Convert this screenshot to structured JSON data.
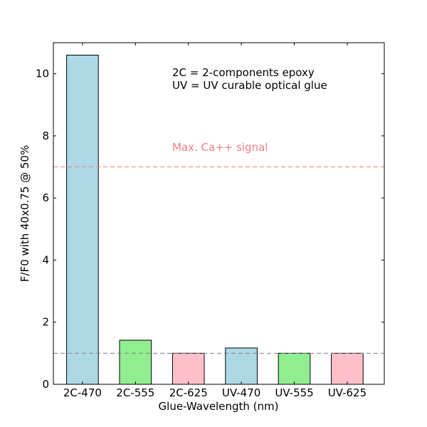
{
  "chart_data": {
    "type": "bar",
    "categories": [
      "2C-470",
      "2C-555",
      "2C-625",
      "UV-470",
      "UV-555",
      "UV-625"
    ],
    "values": [
      10.6,
      1.42,
      1.0,
      1.17,
      1.0,
      1.0
    ],
    "bar_colors": [
      "#add8e6",
      "#90ee90",
      "#ffc0cb",
      "#add8e6",
      "#90ee90",
      "#ffc0cb"
    ],
    "title": "",
    "xlabel": "Glue-Wavelength (nm)",
    "ylabel": "F/F0 with 40x0.75 @ 50%",
    "ylim": [
      0,
      11
    ],
    "yticks": [
      0,
      2,
      4,
      6,
      8,
      10
    ],
    "grid": false,
    "annotations": {
      "line1": "2C = 2-components epoxy",
      "line2": "UV = UV curable optical glue",
      "signal_label": "Max. Ca++ signal"
    },
    "reference_lines": [
      {
        "y": 7.0,
        "color": "#f08080"
      },
      {
        "y": 1.0,
        "color": "#808080"
      }
    ]
  }
}
